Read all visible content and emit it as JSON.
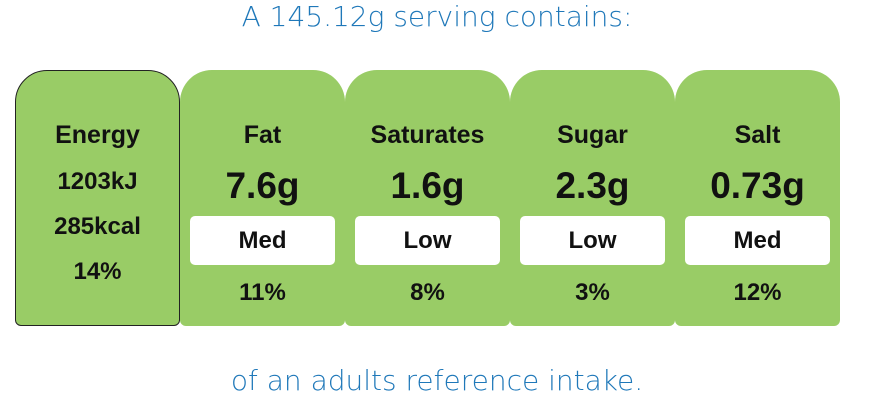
{
  "header": {
    "title": "A 145.12g serving contains:"
  },
  "energy": {
    "label": "Energy",
    "lines": [
      "1203kJ",
      "285kcal",
      "14%"
    ]
  },
  "nutrients": [
    {
      "name": "Fat",
      "amount": "7.6g",
      "level": "Med",
      "percent": "11%"
    },
    {
      "name": "Saturates",
      "amount": "1.6g",
      "level": "Low",
      "percent": "8%"
    },
    {
      "name": "Sugar",
      "amount": "2.3g",
      "level": "Low",
      "percent": "3%"
    },
    {
      "name": "Salt",
      "amount": "0.73g",
      "level": "Med",
      "percent": "12%"
    }
  ],
  "footer": {
    "text": "of an adults reference intake."
  }
}
